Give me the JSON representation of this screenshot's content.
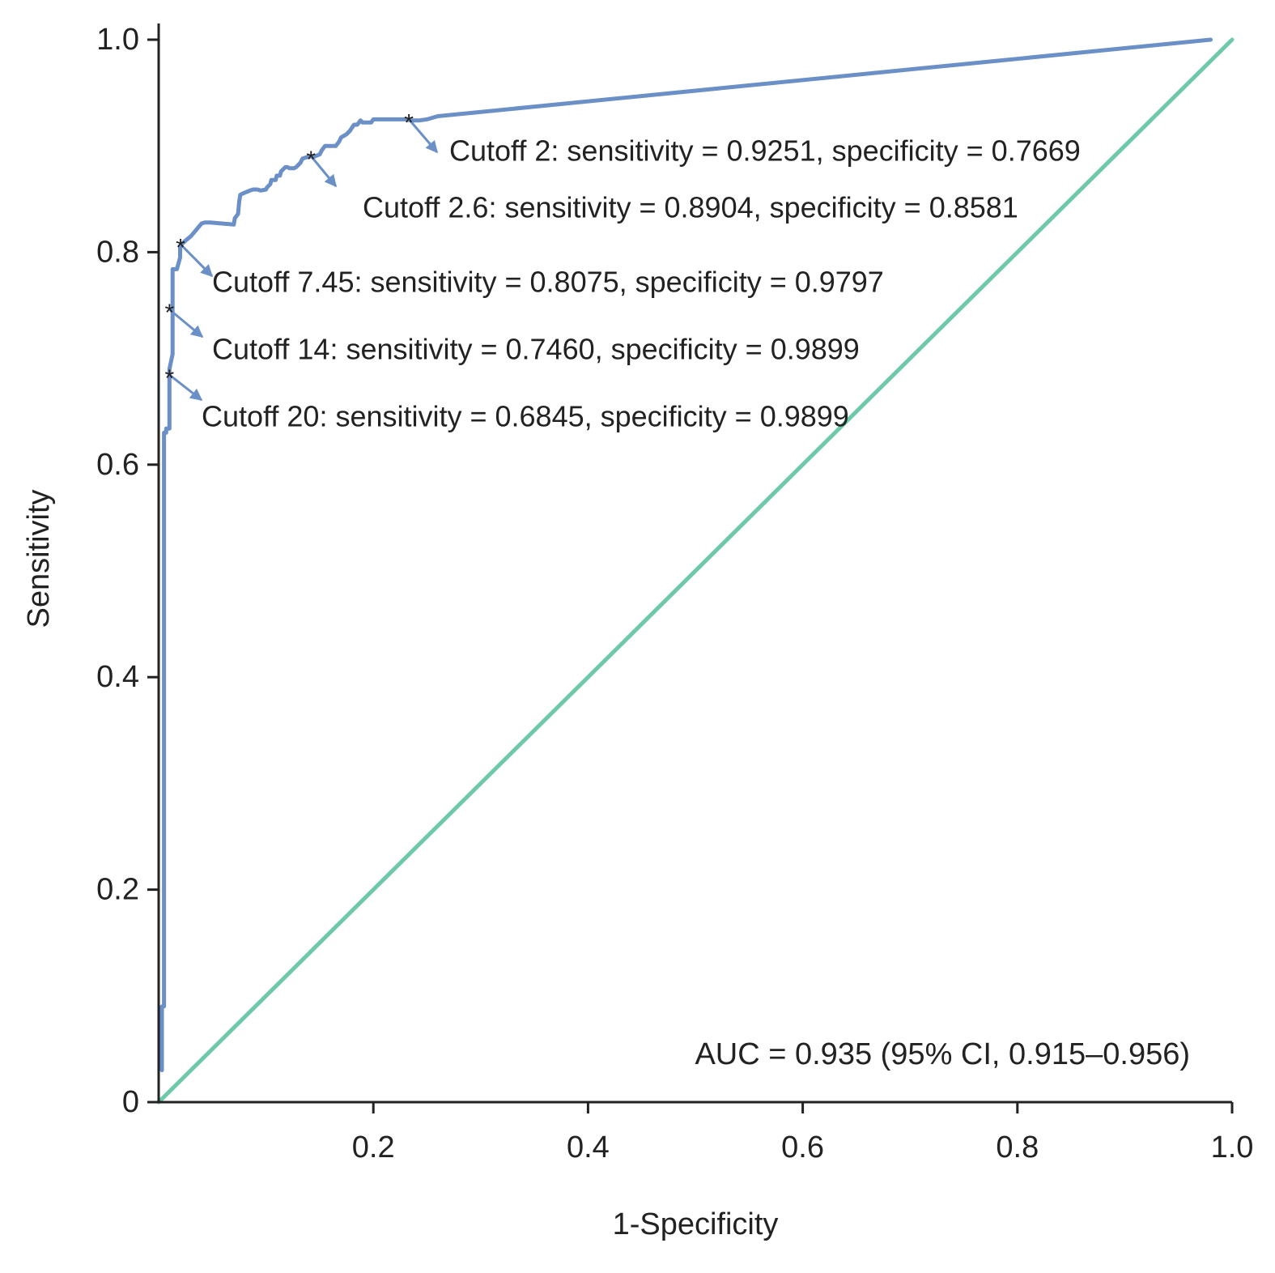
{
  "chart_data": {
    "type": "line",
    "xlabel": "1-Specificity",
    "ylabel": "Sensitivity",
    "xlim": [
      0,
      1
    ],
    "ylim": [
      0,
      1
    ],
    "x_ticks": [
      {
        "value": 0.2,
        "label": "0.2"
      },
      {
        "value": 0.4,
        "label": "0.4"
      },
      {
        "value": 0.6,
        "label": "0.6"
      },
      {
        "value": 0.8,
        "label": "0.8"
      },
      {
        "value": 1.0,
        "label": "1.0"
      }
    ],
    "y_ticks": [
      {
        "value": 0,
        "label": "0"
      },
      {
        "value": 0.2,
        "label": "0.2"
      },
      {
        "value": 0.4,
        "label": "0.4"
      },
      {
        "value": 0.6,
        "label": "0.6"
      },
      {
        "value": 0.8,
        "label": "0.8"
      },
      {
        "value": 1.0,
        "label": "1.0"
      }
    ],
    "grid": false,
    "colors": {
      "roc": "#6b8fc7",
      "reference": "#6ec9a8"
    },
    "series": [
      {
        "role": "roc",
        "x": [
          0.003,
          0.003,
          0.005,
          0.005,
          0.007,
          0.007,
          0.01,
          0.01,
          0.01,
          0.013,
          0.013,
          0.013,
          0.017,
          0.02,
          0.02,
          0.024,
          0.03,
          0.04,
          0.043,
          0.048,
          0.07,
          0.071,
          0.074,
          0.075,
          0.076,
          0.078,
          0.085,
          0.088,
          0.092,
          0.095,
          0.1,
          0.101,
          0.104,
          0.105,
          0.109,
          0.11,
          0.113,
          0.114,
          0.118,
          0.12,
          0.122,
          0.126,
          0.128,
          0.13,
          0.132,
          0.134,
          0.14,
          0.145,
          0.15,
          0.152,
          0.155,
          0.16,
          0.165,
          0.168,
          0.17,
          0.175,
          0.178,
          0.182,
          0.185,
          0.188,
          0.19,
          0.198,
          0.2,
          0.205,
          0.21,
          0.23,
          0.235,
          0.243,
          0.25,
          0.26,
          0.98
        ],
        "y": [
          0.03,
          0.09,
          0.09,
          0.63,
          0.63,
          0.634,
          0.634,
          0.66,
          0.69,
          0.704,
          0.745,
          0.784,
          0.784,
          0.795,
          0.806,
          0.81,
          0.815,
          0.827,
          0.828,
          0.828,
          0.826,
          0.832,
          0.836,
          0.847,
          0.854,
          0.855,
          0.858,
          0.859,
          0.859,
          0.858,
          0.859,
          0.861,
          0.864,
          0.868,
          0.868,
          0.872,
          0.872,
          0.876,
          0.88,
          0.88,
          0.879,
          0.879,
          0.88,
          0.882,
          0.884,
          0.888,
          0.89,
          0.89,
          0.892,
          0.896,
          0.9,
          0.9,
          0.9,
          0.904,
          0.908,
          0.911,
          0.914,
          0.92,
          0.92,
          0.924,
          0.922,
          0.922,
          0.925,
          0.925,
          0.925,
          0.925,
          0.924,
          0.924,
          0.925,
          0.928,
          1.0
        ]
      },
      {
        "role": "reference",
        "x": [
          0,
          1
        ],
        "y": [
          0,
          1
        ]
      }
    ],
    "cutoffs": [
      {
        "x": 0.2331,
        "y": 0.9251,
        "label": "Cutoff 2: sensitivity = 0.9251, specificity = 0.7669"
      },
      {
        "x": 0.1419,
        "y": 0.8904,
        "label": "Cutoff 2.6: sensitivity = 0.8904, specificity = 0.8581"
      },
      {
        "x": 0.0203,
        "y": 0.8075,
        "label": "Cutoff 7.45: sensitivity = 0.8075, specificity = 0.9797"
      },
      {
        "x": 0.0101,
        "y": 0.746,
        "label": "Cutoff 14: sensitivity = 0.7460, specificity = 0.9899"
      },
      {
        "x": 0.0101,
        "y": 0.6845,
        "label": "Cutoff 20: sensitivity = 0.6845, specificity = 0.9899"
      }
    ],
    "annotation": "AUC = 0.935 (95% CI, 0.915–0.956)"
  }
}
